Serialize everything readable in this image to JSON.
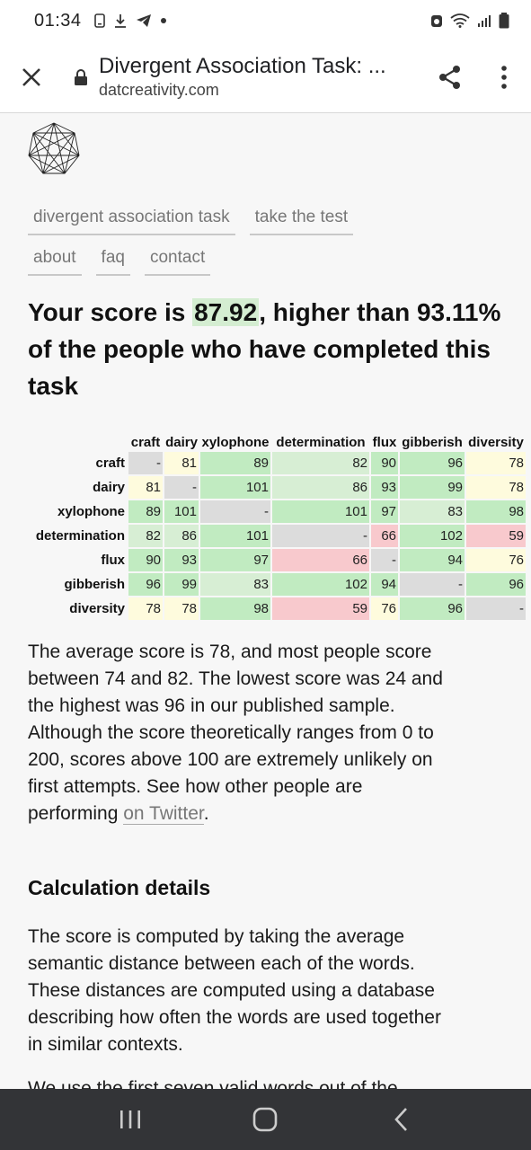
{
  "status_bar": {
    "time": "01:34"
  },
  "browser": {
    "page_title": "Divergent Association Task: ...",
    "domain": "datcreativity.com"
  },
  "nav": {
    "row1": [
      "divergent association task",
      "take the test"
    ],
    "row2": [
      "about",
      "faq",
      "contact"
    ]
  },
  "score": {
    "prefix": "Your score is ",
    "value": "87.92",
    "suffix": ", higher than 93.11% of the people who have completed this task"
  },
  "matrix": {
    "words": [
      "craft",
      "dairy",
      "xylophone",
      "determination",
      "flux",
      "gibberish",
      "diversity"
    ],
    "values": [
      [
        "-",
        "81",
        "89",
        "82",
        "90",
        "96",
        "78"
      ],
      [
        "81",
        "-",
        "101",
        "86",
        "93",
        "99",
        "78"
      ],
      [
        "89",
        "101",
        "-",
        "101",
        "97",
        "83",
        "98"
      ],
      [
        "82",
        "86",
        "101",
        "-",
        "66",
        "102",
        "59"
      ],
      [
        "90",
        "93",
        "97",
        "66",
        "-",
        "94",
        "76"
      ],
      [
        "96",
        "99",
        "83",
        "102",
        "94",
        "-",
        "96"
      ],
      [
        "78",
        "78",
        "98",
        "59",
        "76",
        "96",
        "-"
      ]
    ],
    "colors": {
      "diagonal": "#dcdcdc",
      "low": "#f8c9cd",
      "mid_low": "#fefbdd",
      "mid": "#d7eed4",
      "high": "#c1ebc1"
    }
  },
  "content": {
    "para1_text": "The average score is 78, and most people score between 74 and 82. The lowest score was 24 and the highest was 96 in our published sample. Although the score theoretically ranges from 0 to 200, scores above 100 are extremely unlikely on first attempts. See how other people are performing ",
    "para1_link": "on Twitter",
    "para1_end": ".",
    "calc_heading": "Calculation details",
    "para2": "The score is computed by taking the average semantic distance between each of the words. These distances are computed using a database describing how often the words are used together in similar contexts.",
    "para3_partial": "We use the first seven valid words out of the"
  }
}
